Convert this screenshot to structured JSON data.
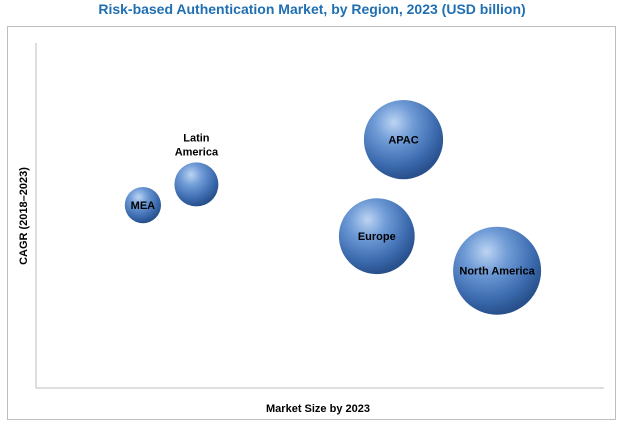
{
  "chart_data": {
    "type": "bubble",
    "title": "Risk-based Authentication Market, by Region, 2023 (USD billion)",
    "xlabel": "Market Size by 2023",
    "ylabel": "CAGR (2018–2023)",
    "axes_tick_labels_shown": false,
    "grid": false,
    "legend": "none",
    "bubble_color": "#3f6fb3",
    "series": [
      {
        "name": "North America",
        "x": 6.9,
        "y": 3.4,
        "size": 1.0,
        "label_lines": [
          "North America"
        ]
      },
      {
        "name": "Europe",
        "x": 5.1,
        "y": 4.4,
        "size": 0.74,
        "label_lines": [
          "Europe"
        ]
      },
      {
        "name": "APAC",
        "x": 5.5,
        "y": 7.2,
        "size": 0.81,
        "label_lines": [
          "APAC"
        ]
      },
      {
        "name": "Latin America",
        "x": 2.4,
        "y": 5.9,
        "size": 0.25,
        "label_lines": [
          "Latin",
          "America"
        ]
      },
      {
        "name": "MEA",
        "x": 1.6,
        "y": 5.3,
        "size": 0.17,
        "label_lines": [
          "MEA"
        ]
      }
    ]
  }
}
